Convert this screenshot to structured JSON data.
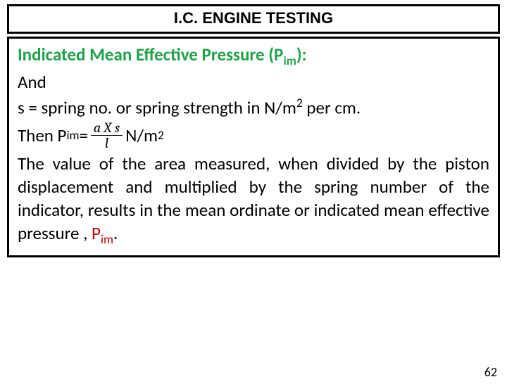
{
  "title": "I.C. ENGINE TESTING",
  "heading": {
    "prefix": "Indicated Mean Effective Pressure (P",
    "sub": "im",
    "suffix": "):"
  },
  "line_and": "And",
  "line_s": {
    "prefix": "s = spring no. or spring strength in N/m",
    "sup": "2",
    "suffix": " per cm."
  },
  "formula": {
    "then": "Then P",
    "sub": "im",
    "eq": " = ",
    "num": "a X s",
    "den": "l",
    "unit_prefix": " N/m",
    "unit_sup": "2"
  },
  "paragraph": "The value of the area measured, when divided by the piston displacement and multiplied by the spring number of the indicator, results in the mean ordinate or indicated mean effective pressure , ",
  "pim": {
    "p": "P",
    "sub": "im"
  },
  "period": ".",
  "page_number": "62",
  "colors": {
    "heading": "#1fa24a",
    "body": "#000000",
    "red": "#c00000",
    "border": "#000000",
    "background": "#ffffff"
  },
  "fonts": {
    "title_family": "Arial",
    "body_family": "Calibri",
    "formula_family": "Cambria",
    "title_size_pt": 17,
    "body_size_pt": 19,
    "frac_size_pt": 15
  }
}
